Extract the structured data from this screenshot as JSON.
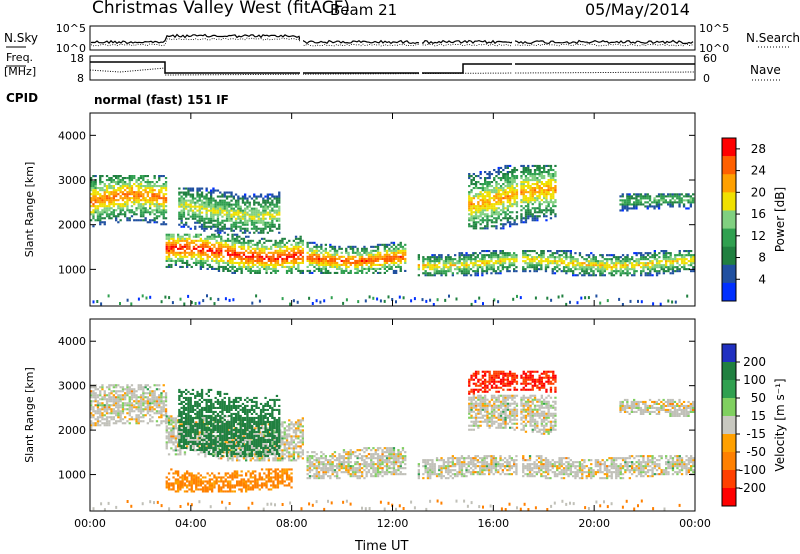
{
  "header": {
    "title": "Christmas Valley West (fitACF)",
    "beam": "Beam 21",
    "date": "05/May/2014"
  },
  "aux_panels": {
    "nsky_label": "N.Sky",
    "nsearch_label": "N.Search",
    "freq_label": "Freq.",
    "mhz_label": "[MHz]",
    "nave_label": "Nave",
    "cpid_label": "CPID",
    "cpid_value": "normal (fast) 151 IF",
    "noise_left_ticks": [
      "10^5",
      "10^0"
    ],
    "noise_right_ticks": [
      "10^5",
      "10^0"
    ],
    "freq_left_ticks": [
      "18",
      "8"
    ],
    "nave_right_ticks": [
      "60",
      "0"
    ]
  },
  "colors": {
    "power_scale": [
      "#0030ff",
      "#2050a0",
      "#208040",
      "#30a050",
      "#80d080",
      "#f0e000",
      "#ffa000",
      "#ff6000",
      "#ff0000"
    ],
    "velocity_scale": [
      "#2030c0",
      "#208040",
      "#30a050",
      "#80d060",
      "#c8c8c0",
      "#ffa000",
      "#ff8000",
      "#ff4000",
      "#ff0000"
    ],
    "gs_gray": "#c0c0b8"
  },
  "chart_data": [
    {
      "type": "heatmap",
      "name": "power",
      "ylabel": "Slant Range [km]",
      "xlabel": "Time UT",
      "x_ticks": [
        "00:00",
        "04:00",
        "08:00",
        "12:00",
        "16:00",
        "20:00",
        "00:00"
      ],
      "xlim": [
        0,
        24
      ],
      "y_ticks": [
        1000,
        2000,
        3000,
        4000
      ],
      "ylim": [
        180,
        4500
      ],
      "colorbar": {
        "label": "Power [dB]",
        "ticks": [
          4,
          8,
          12,
          16,
          20,
          24,
          28
        ],
        "range": [
          0,
          30
        ]
      },
      "features": [
        {
          "t": [
            0.0,
            3.0
          ],
          "r": [
            1900,
            3100
          ],
          "peak": 24
        },
        {
          "t": [
            3.0,
            8.5
          ],
          "r": [
            900,
            1800
          ],
          "peak": 28
        },
        {
          "t": [
            3.5,
            7.5
          ],
          "r": [
            1800,
            2800
          ],
          "peak": 18
        },
        {
          "t": [
            8.5,
            12.5
          ],
          "r": [
            900,
            1600
          ],
          "peak": 26
        },
        {
          "t": [
            13.0,
            23.9
          ],
          "r": [
            850,
            1400
          ],
          "peak": 20
        },
        {
          "t": [
            15.0,
            18.5
          ],
          "r": [
            1900,
            3300
          ],
          "peak": 22
        },
        {
          "t": [
            21.0,
            23.9
          ],
          "r": [
            2300,
            2700
          ],
          "peak": 14
        }
      ]
    },
    {
      "type": "heatmap",
      "name": "velocity",
      "ylabel": "Slant Range [km]",
      "xlabel": "Time UT",
      "x_ticks": [
        "00:00",
        "04:00",
        "08:00",
        "12:00",
        "16:00",
        "20:00",
        "00:00"
      ],
      "xlim": [
        0,
        24
      ],
      "y_ticks": [
        1000,
        2000,
        3000,
        4000
      ],
      "ylim": [
        180,
        4500
      ],
      "colorbar": {
        "label": "Velocity [m s⁻¹]",
        "ticks": [
          200,
          100,
          50,
          15,
          -15,
          -50,
          -100,
          -200
        ],
        "range": [
          -250,
          250
        ]
      },
      "features": [
        {
          "t": [
            0.0,
            3.0
          ],
          "r": [
            2000,
            3000
          ],
          "v": 0
        },
        {
          "t": [
            3.0,
            8.5
          ],
          "r": [
            1300,
            2300
          ],
          "v": 0
        },
        {
          "t": [
            3.5,
            7.5
          ],
          "r": [
            1400,
            2900
          ],
          "v": 120
        },
        {
          "t": [
            3.0,
            8.0
          ],
          "r": [
            600,
            1100
          ],
          "v": -60
        },
        {
          "t": [
            8.5,
            12.5
          ],
          "r": [
            900,
            1600
          ],
          "v": 0
        },
        {
          "t": [
            13.0,
            23.9
          ],
          "r": [
            900,
            1400
          ],
          "v": 0
        },
        {
          "t": [
            15.0,
            18.5
          ],
          "r": [
            2800,
            3300
          ],
          "v": -200
        },
        {
          "t": [
            15.0,
            18.5
          ],
          "r": [
            1900,
            2800
          ],
          "v": 0
        },
        {
          "t": [
            21.0,
            23.9
          ],
          "r": [
            2300,
            2700
          ],
          "v": 0
        }
      ]
    }
  ]
}
